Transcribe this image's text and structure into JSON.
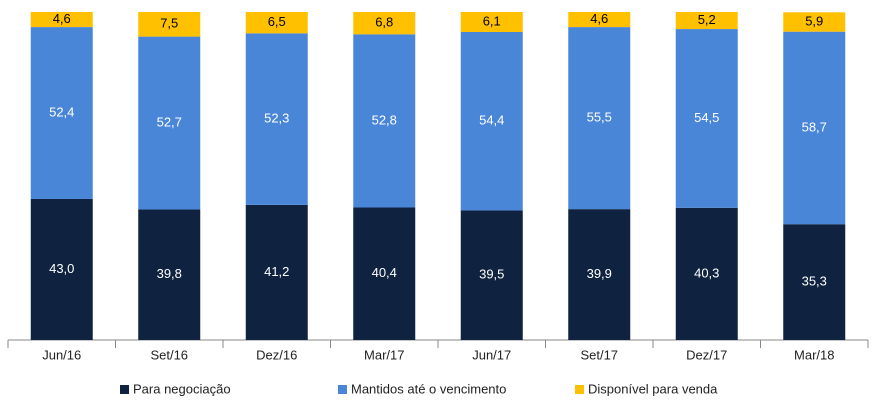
{
  "chart_data": {
    "type": "stacked_bar",
    "categories": [
      "Jun/16",
      "Set/16",
      "Dez/16",
      "Mar/17",
      "Jun/17",
      "Set/17",
      "Dez/17",
      "Mar/18"
    ],
    "series": [
      {
        "name": "Para negociação",
        "color": "#0f2340",
        "label_color": "#ffffff",
        "values": [
          43.0,
          39.8,
          41.2,
          40.4,
          39.5,
          39.9,
          40.3,
          35.3
        ],
        "value_labels": [
          "43,0",
          "39,8",
          "41,2",
          "40,4",
          "39,5",
          "39,9",
          "40,3",
          "35,3"
        ]
      },
      {
        "name": "Mantidos até o vencimento",
        "color": "#4a86d8",
        "label_color": "#ffffff",
        "values": [
          52.4,
          52.7,
          52.3,
          52.8,
          54.4,
          55.5,
          54.5,
          58.7
        ],
        "value_labels": [
          "52,4",
          "52,7",
          "52,3",
          "52,8",
          "54,4",
          "55,5",
          "54,5",
          "58,7"
        ]
      },
      {
        "name": "Disponível para venda",
        "color": "#ffc000",
        "label_color": "#000000",
        "values": [
          4.6,
          7.5,
          6.5,
          6.8,
          6.1,
          4.6,
          5.2,
          5.9
        ],
        "value_labels": [
          "4,6",
          "7,5",
          "6,5",
          "6,8",
          "6,1",
          "4,6",
          "5,2",
          "5,9"
        ]
      }
    ]
  }
}
